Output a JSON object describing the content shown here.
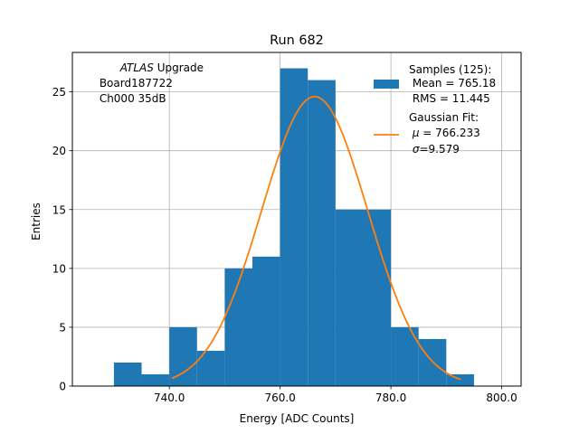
{
  "chart_data": {
    "type": "bar",
    "title": "Run 682",
    "xlabel": "Energy [ADC Counts]",
    "ylabel": "Entries",
    "xlim": [
      722.5,
      803.5
    ],
    "ylim": [
      0,
      28.35
    ],
    "grid": true,
    "x_ticks": [
      740,
      760,
      780,
      800
    ],
    "x_tick_labels": [
      "740.0",
      "760.0",
      "780.0",
      "800.0"
    ],
    "y_ticks": [
      0,
      5,
      10,
      15,
      20,
      25
    ],
    "y_tick_labels": [
      "0",
      "5",
      "10",
      "15",
      "20",
      "25"
    ],
    "bins": [
      {
        "start": 730,
        "end": 735,
        "count": 2
      },
      {
        "start": 735,
        "end": 740,
        "count": 1
      },
      {
        "start": 740,
        "end": 745,
        "count": 5
      },
      {
        "start": 745,
        "end": 750,
        "count": 3
      },
      {
        "start": 750,
        "end": 755,
        "count": 10
      },
      {
        "start": 755,
        "end": 760,
        "count": 11
      },
      {
        "start": 760,
        "end": 765,
        "count": 27
      },
      {
        "start": 765,
        "end": 770,
        "count": 26
      },
      {
        "start": 770,
        "end": 775,
        "count": 15
      },
      {
        "start": 775,
        "end": 780,
        "count": 15
      },
      {
        "start": 780,
        "end": 785,
        "count": 5
      },
      {
        "start": 785,
        "end": 790,
        "count": 4
      },
      {
        "start": 790,
        "end": 795,
        "count": 1
      }
    ],
    "fit": {
      "type": "gaussian",
      "mu": 766.233,
      "sigma": 9.579,
      "amplitude": 24.6,
      "x_range": [
        740.5,
        792.6
      ]
    },
    "series_colors": {
      "histogram": "#1f77b4",
      "fit": "#ff7f0e"
    },
    "annotation": {
      "line1_italic": "ATLAS",
      "line1_rest": " Upgrade",
      "line2": " Board187722",
      "line3": " Ch000 35dB"
    },
    "legend": {
      "position": "top-right",
      "samples_title": "Samples (125):",
      "samples_mean": " Mean = 765.18",
      "samples_rms": " RMS = 11.445",
      "fit_title": "Gaussian Fit:",
      "fit_mu_symbol": "μ",
      "fit_mu_value": " = 766.233",
      "fit_sigma_symbol": "σ",
      "fit_sigma_value": "=9.579"
    }
  }
}
